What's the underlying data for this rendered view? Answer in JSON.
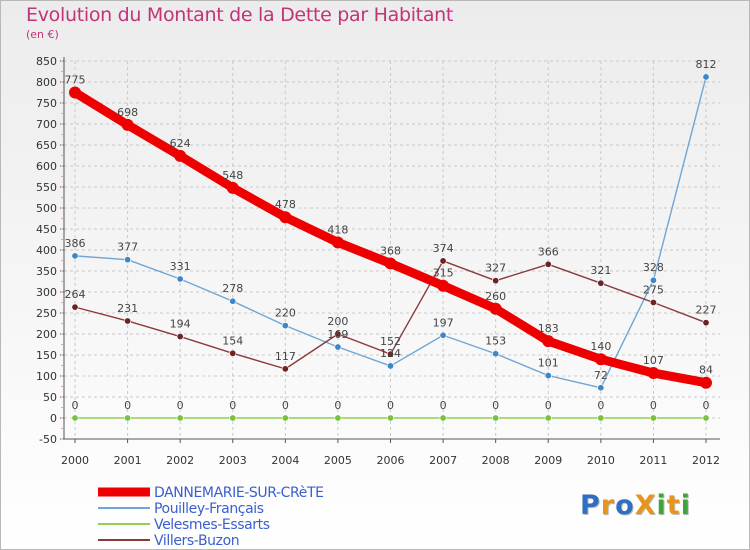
{
  "header": {
    "title": "Evolution du Montant de la Dette par Habitant",
    "subtitle": "(en €)"
  },
  "logo": {
    "text": "ProXiti",
    "letters": [
      {
        "ch": "P",
        "color": "#2e6fc4"
      },
      {
        "ch": "r",
        "color": "#e8941c"
      },
      {
        "ch": "o",
        "color": "#2e6fc4"
      },
      {
        "ch": "X",
        "color": "#e8941c"
      },
      {
        "ch": "i",
        "color": "#3ea53a"
      },
      {
        "ch": "t",
        "color": "#e8941c"
      },
      {
        "ch": "i",
        "color": "#3ea53a"
      }
    ]
  },
  "chart_data": {
    "type": "line",
    "title": "Evolution du Montant de la Dette par Habitant",
    "ylabel": "(en €)",
    "xlabel": "",
    "x": [
      2000,
      2001,
      2002,
      2003,
      2004,
      2005,
      2006,
      2007,
      2008,
      2009,
      2010,
      2011,
      2012
    ],
    "ylim": [
      -50,
      850
    ],
    "ytick_step": 50,
    "grid": "dashed",
    "legend_position": "bottom-left",
    "series": [
      {
        "name": "DANNEMARIE-SUR-CRèTE",
        "color": "#ee0000",
        "marker": "#ee0000",
        "values": [
          775,
          698,
          624,
          548,
          478,
          418,
          368,
          315,
          260,
          183,
          140,
          107,
          84
        ],
        "labels": [
          "775",
          "698",
          "624",
          "548",
          "478",
          "418",
          "368",
          "315",
          "260",
          "183",
          "140",
          "107",
          "84"
        ]
      },
      {
        "name": "Pouilley-Français",
        "color": "#6fa6d6",
        "marker": "#3d87c8",
        "values": [
          386,
          377,
          331,
          278,
          220,
          169,
          124,
          197,
          153,
          101,
          72,
          328,
          812
        ],
        "labels": [
          "386",
          "377",
          "331",
          "278",
          "220",
          "169",
          "124",
          "197",
          "153",
          "101",
          "72",
          "328",
          "812"
        ]
      },
      {
        "name": "Velesmes-Essarts",
        "color": "#92d050",
        "marker": "#7ac143",
        "values": [
          0,
          0,
          0,
          0,
          0,
          0,
          0,
          0,
          0,
          0,
          0,
          0,
          0
        ],
        "labels": [
          "0",
          "0",
          "0",
          "0",
          "0",
          "0",
          "0",
          "0",
          "0",
          "0",
          "0",
          "0",
          "0"
        ]
      },
      {
        "name": "Villers-Buzon",
        "color": "#8b3a3a",
        "marker": "#6b2323",
        "values": [
          264,
          231,
          194,
          154,
          117,
          200,
          152,
          374,
          327,
          366,
          321,
          275,
          227
        ],
        "labels": [
          "264",
          "231",
          "194",
          "154",
          "117",
          "200",
          "152",
          "374",
          "327",
          "366",
          "321",
          "275",
          "227"
        ]
      }
    ]
  }
}
